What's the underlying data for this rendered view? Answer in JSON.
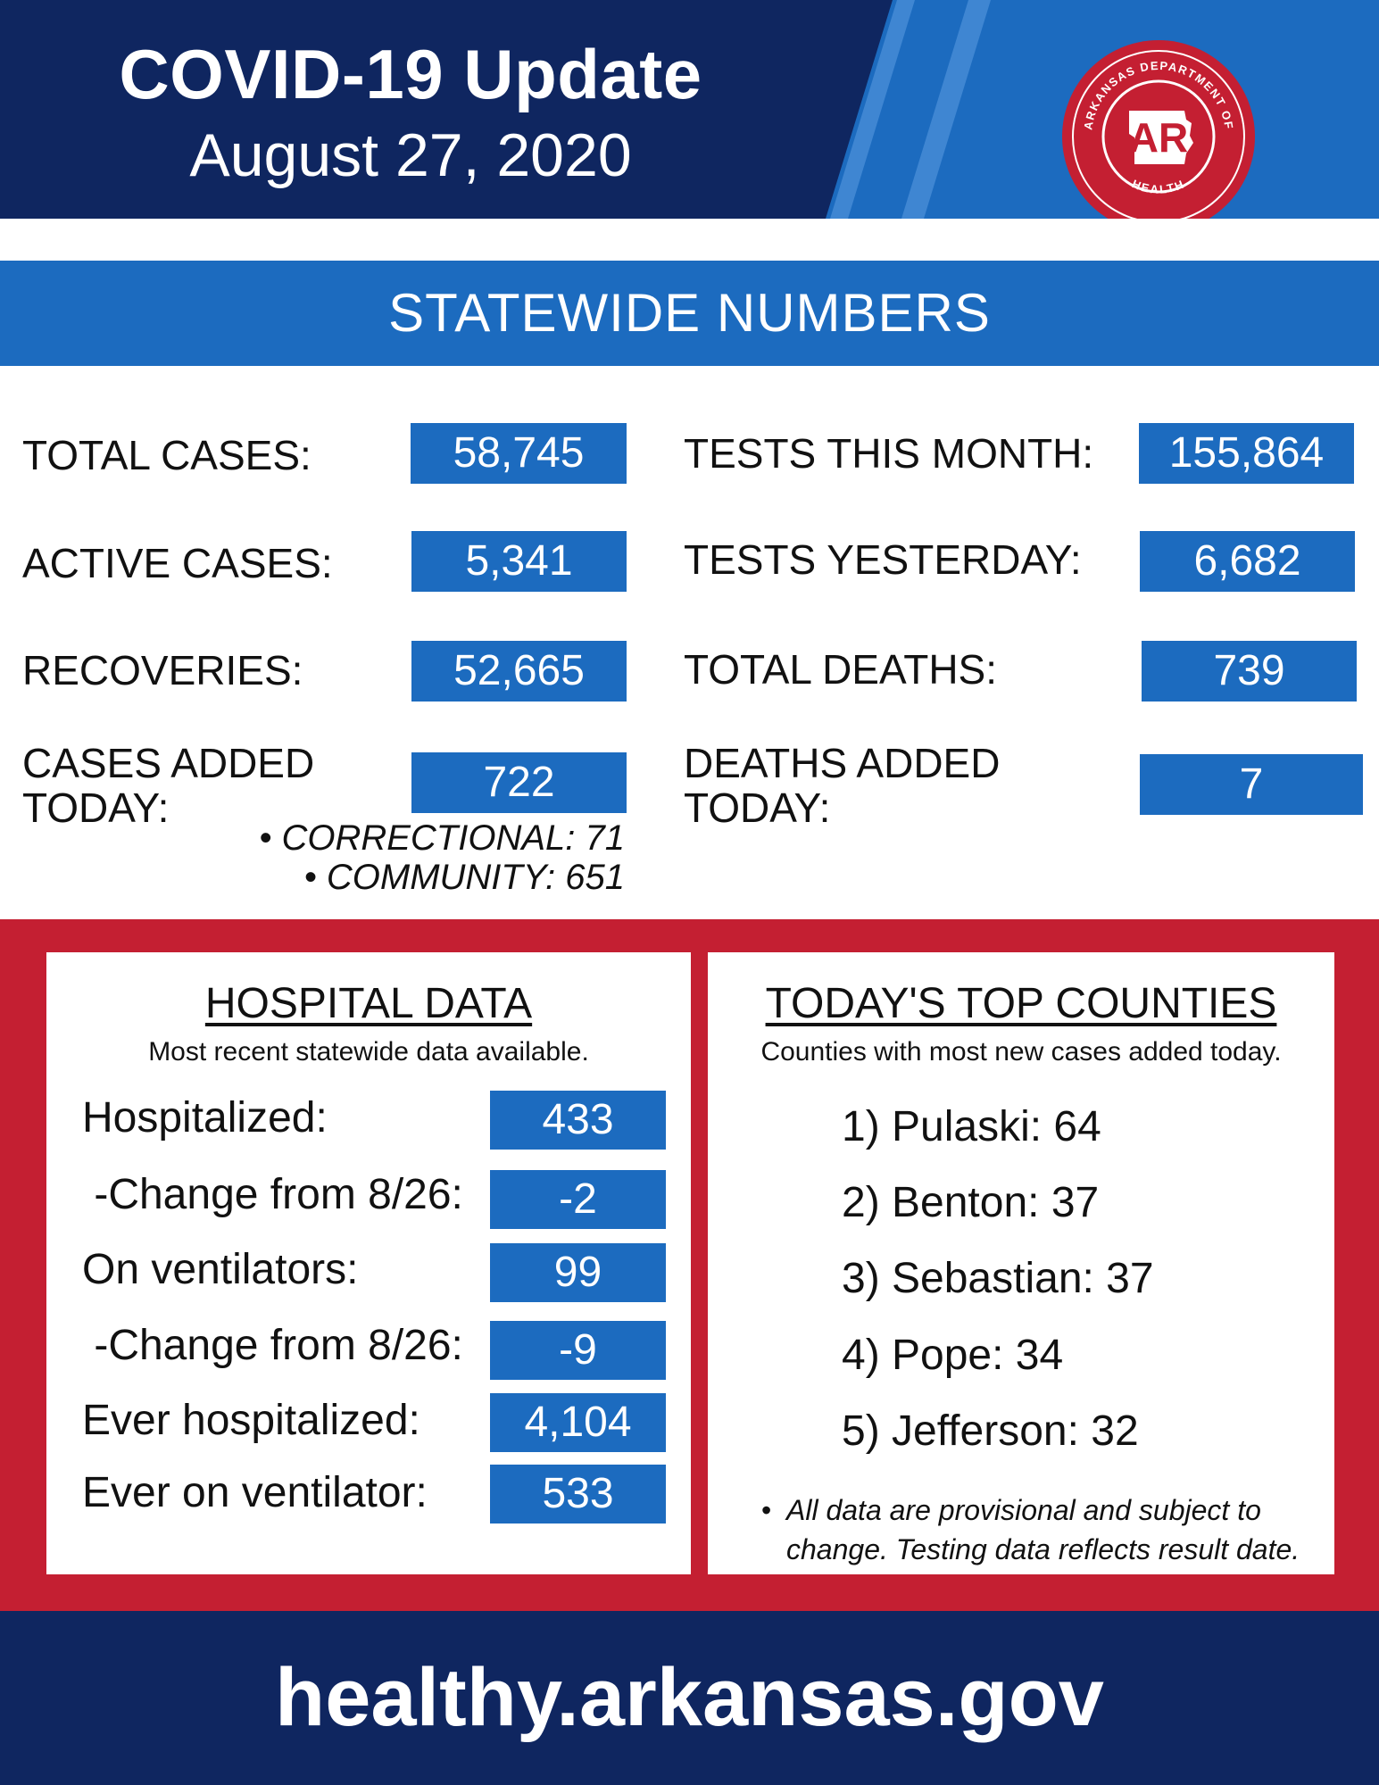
{
  "header": {
    "title": "COVID-19 Update",
    "date": "August 27, 2020",
    "logo": {
      "ring_text_top": "ARKANSAS DEPARTMENT OF",
      "ring_text_bottom": "HEALTH",
      "initials": "AR"
    }
  },
  "statewide": {
    "banner": "STATEWIDE NUMBERS",
    "left": [
      {
        "label": "TOTAL CASES:",
        "value": "58,745"
      },
      {
        "label": "ACTIVE CASES:",
        "value": "5,341"
      },
      {
        "label": "RECOVERIES:",
        "value": "52,665"
      },
      {
        "label_line1": "CASES ADDED",
        "label_line2": "TODAY:",
        "value": "722"
      }
    ],
    "right": [
      {
        "label": "TESTS THIS MONTH:",
        "value": "155,864"
      },
      {
        "label": "TESTS YESTERDAY:",
        "value": "6,682"
      },
      {
        "label": "TOTAL DEATHS:",
        "value": "739"
      },
      {
        "label_line1": "DEATHS ADDED",
        "label_line2": "TODAY:",
        "value": "7"
      }
    ],
    "cases_breakdown": [
      "• CORRECTIONAL: 71",
      "• COMMUNITY: 651"
    ]
  },
  "hospital": {
    "title": "HOSPITAL DATA",
    "subtitle": "Most recent statewide data available.",
    "rows": [
      {
        "label": "Hospitalized:",
        "value": "433"
      },
      {
        "label": " -Change from 8/26:",
        "value": "-2"
      },
      {
        "label": "On ventilators:",
        "value": "99"
      },
      {
        "label": " -Change from 8/26:",
        "value": "-9"
      },
      {
        "label": "Ever hospitalized:",
        "value": "4,104"
      },
      {
        "label": "Ever on ventilator:",
        "value": "533"
      }
    ]
  },
  "counties": {
    "title": "TODAY'S TOP COUNTIES",
    "subtitle": "Counties with most new cases added today.",
    "items": [
      "1) Pulaski: 64",
      "2) Benton: 37",
      "3) Sebastian: 37",
      "4) Pope: 34",
      "5) Jefferson: 32"
    ],
    "disclaimer_line1": "All data are provisional and subject to",
    "disclaimer_line2": "change. Testing data reflects result date."
  },
  "footer": {
    "url": "healthy.arkansas.gov"
  },
  "colors": {
    "navy": "#0f2660",
    "blue": "#1c6bbf",
    "red": "#c41f32"
  }
}
